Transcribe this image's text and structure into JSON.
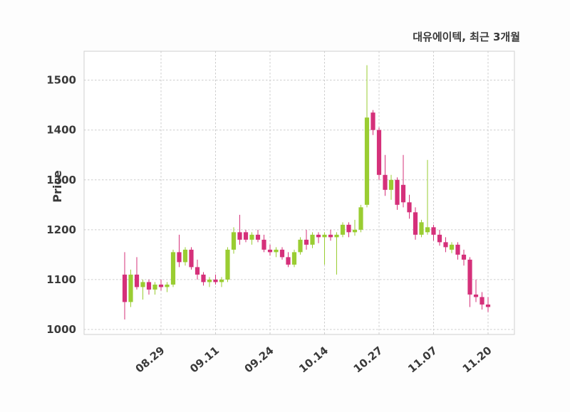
{
  "chart_data": {
    "type": "candlestick",
    "title": "대유에이텍, 최근 3개월",
    "ylabel": "Price",
    "ylim": [
      990,
      1558
    ],
    "yticks": [
      1000,
      1100,
      1200,
      1300,
      1400,
      1500
    ],
    "xtick_labels": [
      "08.29",
      "09.11",
      "09.24",
      "10.14",
      "10.27",
      "11.07",
      "11.20"
    ],
    "xtick_indices": [
      6,
      15,
      24,
      33,
      42,
      51,
      60
    ],
    "grid": true,
    "up_color": "#9ACD32",
    "down_color": "#D5307A",
    "grid_color": "#cccccc",
    "spine_color": "#cfcfcf",
    "text_color": "#3a3a3a",
    "candles": [
      [
        1110,
        1155,
        1020,
        1055
      ],
      [
        1055,
        1120,
        1045,
        1110
      ],
      [
        1110,
        1145,
        1080,
        1085
      ],
      [
        1085,
        1100,
        1060,
        1095
      ],
      [
        1095,
        1100,
        1070,
        1080
      ],
      [
        1080,
        1095,
        1070,
        1090
      ],
      [
        1090,
        1100,
        1078,
        1085
      ],
      [
        1085,
        1095,
        1075,
        1090
      ],
      [
        1090,
        1160,
        1085,
        1155
      ],
      [
        1155,
        1190,
        1125,
        1135
      ],
      [
        1135,
        1165,
        1128,
        1160
      ],
      [
        1160,
        1165,
        1120,
        1125
      ],
      [
        1125,
        1140,
        1100,
        1110
      ],
      [
        1110,
        1115,
        1088,
        1095
      ],
      [
        1095,
        1105,
        1085,
        1100
      ],
      [
        1100,
        1110,
        1090,
        1095
      ],
      [
        1095,
        1105,
        1085,
        1100
      ],
      [
        1100,
        1165,
        1095,
        1160
      ],
      [
        1160,
        1205,
        1152,
        1195
      ],
      [
        1195,
        1230,
        1170,
        1180
      ],
      [
        1195,
        1200,
        1175,
        1180
      ],
      [
        1180,
        1195,
        1170,
        1190
      ],
      [
        1190,
        1200,
        1175,
        1180
      ],
      [
        1180,
        1190,
        1155,
        1160
      ],
      [
        1160,
        1170,
        1148,
        1155
      ],
      [
        1155,
        1165,
        1145,
        1160
      ],
      [
        1160,
        1165,
        1140,
        1145
      ],
      [
        1145,
        1155,
        1125,
        1130
      ],
      [
        1130,
        1160,
        1125,
        1155
      ],
      [
        1155,
        1185,
        1150,
        1180
      ],
      [
        1180,
        1200,
        1160,
        1170
      ],
      [
        1170,
        1195,
        1163,
        1190
      ],
      [
        1190,
        1195,
        1173,
        1185
      ],
      [
        1185,
        1195,
        1130,
        1190
      ],
      [
        1190,
        1200,
        1178,
        1185
      ],
      [
        1185,
        1195,
        1110,
        1190
      ],
      [
        1190,
        1215,
        1185,
        1210
      ],
      [
        1210,
        1215,
        1185,
        1195
      ],
      [
        1195,
        1220,
        1188,
        1200
      ],
      [
        1200,
        1250,
        1195,
        1245
      ],
      [
        1250,
        1530,
        1245,
        1425
      ],
      [
        1435,
        1440,
        1390,
        1400
      ],
      [
        1400,
        1405,
        1300,
        1310
      ],
      [
        1310,
        1350,
        1268,
        1280
      ],
      [
        1280,
        1310,
        1260,
        1300
      ],
      [
        1300,
        1305,
        1240,
        1250
      ],
      [
        1290,
        1350,
        1245,
        1255
      ],
      [
        1255,
        1270,
        1222,
        1235
      ],
      [
        1235,
        1245,
        1180,
        1190
      ],
      [
        1190,
        1220,
        1185,
        1215
      ],
      [
        1195,
        1340,
        1190,
        1205
      ],
      [
        1205,
        1210,
        1178,
        1190
      ],
      [
        1190,
        1200,
        1168,
        1175
      ],
      [
        1175,
        1185,
        1155,
        1165
      ],
      [
        1160,
        1175,
        1153,
        1170
      ],
      [
        1170,
        1175,
        1140,
        1150
      ],
      [
        1150,
        1160,
        1128,
        1140
      ],
      [
        1140,
        1145,
        1045,
        1070
      ],
      [
        1070,
        1100,
        1055,
        1065
      ],
      [
        1065,
        1075,
        1040,
        1050
      ],
      [
        1050,
        1065,
        1035,
        1045
      ]
    ]
  }
}
